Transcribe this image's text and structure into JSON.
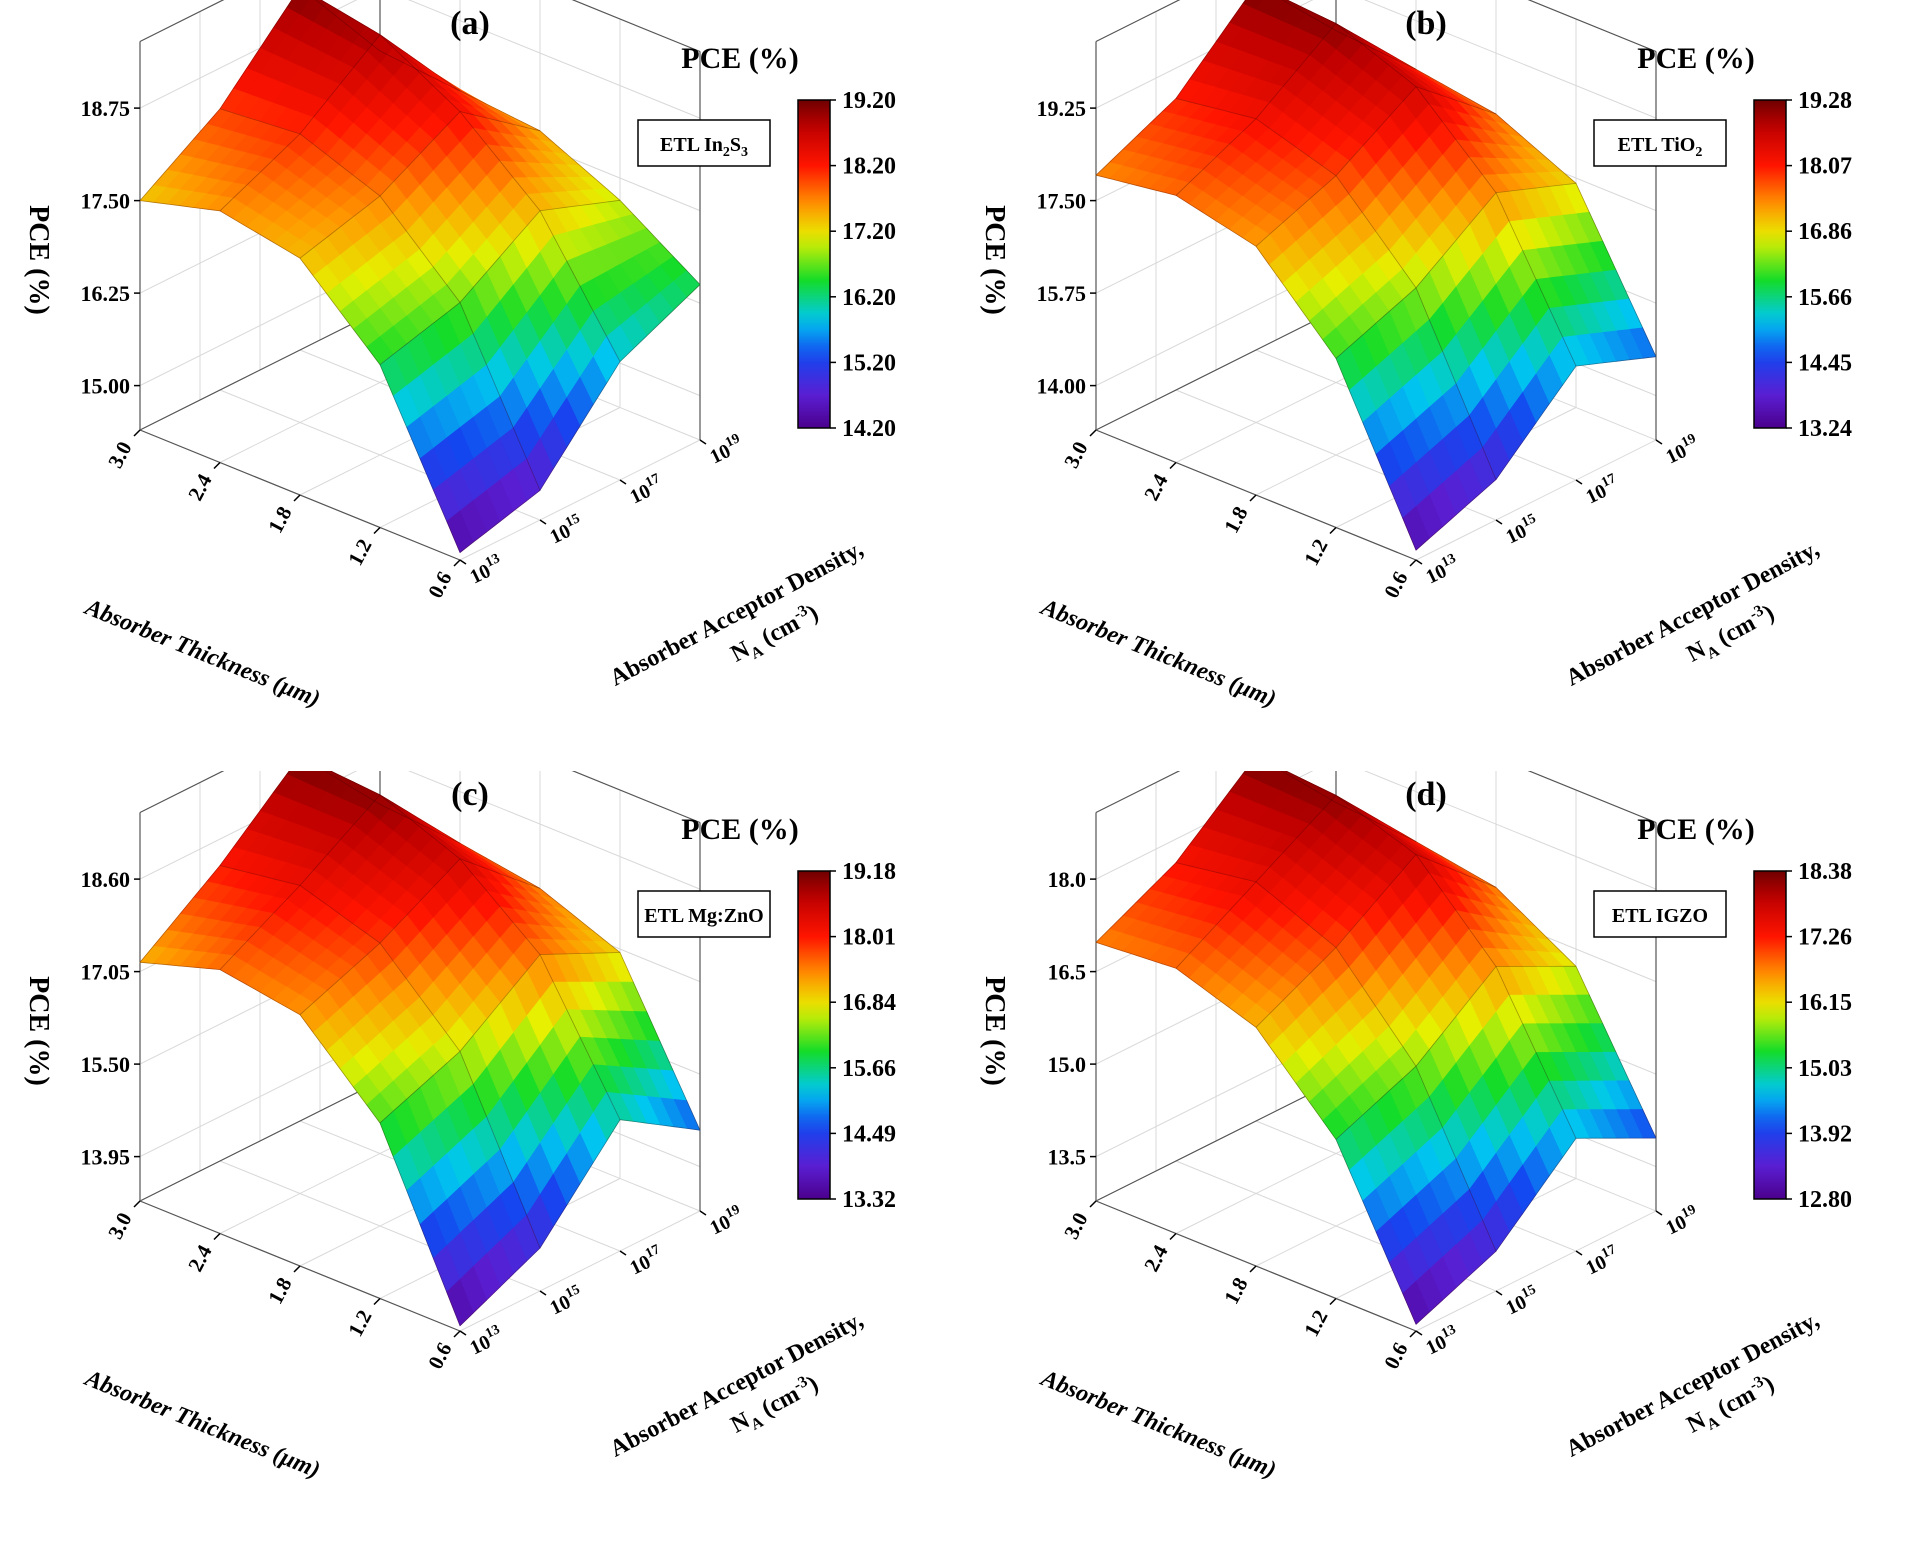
{
  "charts": [
    {
      "panel_label": "(a)",
      "etl": {
        "prefix": "ETL In",
        "parts": [
          [
            "In",
            ""
          ],
          [
            "2",
            "sub"
          ],
          [
            "S",
            ""
          ],
          [
            "3",
            "sub"
          ]
        ]
      },
      "colorbar": {
        "title": "PCE (%)",
        "ticks": [
          "19.20",
          "18.20",
          "17.20",
          "16.20",
          "15.20",
          "14.20"
        ]
      },
      "zticks": [
        "18.75",
        "17.50",
        "16.25",
        "15.00"
      ]
    },
    {
      "panel_label": "(b)",
      "etl": {
        "prefix": "ETL TiO",
        "parts": [
          [
            "TiO",
            ""
          ],
          [
            "2",
            "sub"
          ]
        ]
      },
      "colorbar": {
        "title": "PCE (%)",
        "ticks": [
          "19.28",
          "18.07",
          "16.86",
          "15.66",
          "14.45",
          "13.24"
        ]
      },
      "zticks": [
        "19.25",
        "17.50",
        "15.75",
        "14.00"
      ]
    },
    {
      "panel_label": "(c)",
      "etl": {
        "prefix": "ETL Mg:ZnO",
        "parts": [
          [
            "Mg:ZnO",
            ""
          ]
        ]
      },
      "colorbar": {
        "title": "PCE (%)",
        "ticks": [
          "19.18",
          "18.01",
          "16.84",
          "15.66",
          "14.49",
          "13.32"
        ]
      },
      "zticks": [
        "18.60",
        "17.05",
        "15.50",
        "13.95"
      ]
    },
    {
      "panel_label": "(d)",
      "etl": {
        "prefix": "ETL IGZO",
        "parts": [
          [
            "IGZO",
            ""
          ]
        ]
      },
      "colorbar": {
        "title": "PCE (%)",
        "ticks": [
          "18.38",
          "17.26",
          "16.15",
          "15.03",
          "13.92",
          "12.80"
        ]
      },
      "zticks": [
        "18.0",
        "16.5",
        "15.0",
        "13.5"
      ]
    }
  ],
  "shared": {
    "zlabel": "PCE (%)",
    "thickness_label": "Absorber Thickness (μm)",
    "thickness_ticks": [
      "3.0",
      "2.4",
      "1.8",
      "1.2",
      "0.6"
    ],
    "density_label_1": "Absorber Acceptor Density,",
    "density_label_2_main": "N",
    "density_label_2_sub": "A",
    "density_label_2_rest": " (cm",
    "density_label_2_sup": "-3",
    "density_label_2_end": ")",
    "density_ticks": [
      [
        "10",
        "13"
      ],
      [
        "10",
        "15"
      ],
      [
        "10",
        "17"
      ],
      [
        "10",
        "19"
      ]
    ]
  },
  "chart_data": [
    {
      "type": "surface3d",
      "title": "(a) ETL In2S3",
      "x": {
        "label": "Absorber Thickness (μm)",
        "values": [
          0.6,
          1.2,
          1.8,
          2.4,
          3.0
        ]
      },
      "y": {
        "label": "Absorber Acceptor Density, NA (cm-3)",
        "values": [
          "1e13",
          "1e15",
          "1e17",
          "1e19"
        ]
      },
      "z": {
        "label": "PCE (%)",
        "range": [
          14.2,
          19.2
        ]
      },
      "colorscale_range": [
        14.2,
        19.2
      ],
      "pce_grid_rows_thickness_cols_density": [
        [
          14.3,
          14.6,
          15.8,
          16.3
        ],
        [
          16.4,
          16.7,
          17.4,
          17.0
        ],
        [
          17.4,
          17.7,
          18.3,
          17.5
        ],
        [
          17.6,
          18.1,
          18.9,
          17.6
        ],
        [
          17.3,
          18.0,
          19.1,
          17.7
        ]
      ]
    },
    {
      "type": "surface3d",
      "title": "(b) ETL TiO2",
      "x": {
        "label": "Absorber Thickness (μm)",
        "values": [
          0.6,
          1.2,
          1.8,
          2.4,
          3.0
        ]
      },
      "y": {
        "label": "Absorber Acceptor Density, NA (cm-3)",
        "values": [
          "1e13",
          "1e15",
          "1e17",
          "1e19"
        ]
      },
      "z": {
        "label": "PCE (%)",
        "range": [
          13.24,
          19.28
        ]
      },
      "colorscale_range": [
        13.24,
        19.28
      ],
      "pce_grid_rows_thickness_cols_density": [
        [
          13.4,
          13.9,
          15.1,
          14.6
        ],
        [
          16.0,
          16.5,
          17.4,
          16.9
        ],
        [
          17.3,
          17.8,
          18.6,
          17.5
        ],
        [
          17.6,
          18.2,
          19.1,
          17.7
        ],
        [
          17.4,
          18.0,
          19.2,
          17.8
        ]
      ]
    },
    {
      "type": "surface3d",
      "title": "(c) ETL Mg:ZnO",
      "x": {
        "label": "Absorber Thickness (μm)",
        "values": [
          0.6,
          1.2,
          1.8,
          2.4,
          3.0
        ]
      },
      "y": {
        "label": "Absorber Acceptor Density, NA (cm-3)",
        "values": [
          "1e13",
          "1e15",
          "1e17",
          "1e19"
        ]
      },
      "z": {
        "label": "PCE (%)",
        "range": [
          13.32,
          19.18
        ]
      },
      "colorscale_range": [
        13.32,
        19.18
      ],
      "pce_grid_rows_thickness_cols_density": [
        [
          13.4,
          14.0,
          15.4,
          14.6
        ],
        [
          16.1,
          16.6,
          17.5,
          16.9
        ],
        [
          17.3,
          17.8,
          18.5,
          17.4
        ],
        [
          17.5,
          18.2,
          19.0,
          17.6
        ],
        [
          17.1,
          18.0,
          19.1,
          17.7
        ]
      ]
    },
    {
      "type": "surface3d",
      "title": "(d) ETL IGZO",
      "x": {
        "label": "Absorber Thickness (μm)",
        "values": [
          0.6,
          1.2,
          1.8,
          2.4,
          3.0
        ]
      },
      "y": {
        "label": "Absorber Acceptor Density, NA (cm-3)",
        "values": [
          "1e13",
          "1e15",
          "1e17",
          "1e19"
        ]
      },
      "z": {
        "label": "PCE (%)",
        "range": [
          12.8,
          18.38
        ]
      },
      "colorscale_range": [
        12.8,
        18.38
      ],
      "pce_grid_rows_thickness_cols_density": [
        [
          12.9,
          13.4,
          14.5,
          13.9
        ],
        [
          15.2,
          15.7,
          16.6,
          16.0
        ],
        [
          16.4,
          17.0,
          17.8,
          16.7
        ],
        [
          16.8,
          17.5,
          18.2,
          16.9
        ],
        [
          16.7,
          17.3,
          18.3,
          17.0
        ]
      ]
    }
  ]
}
